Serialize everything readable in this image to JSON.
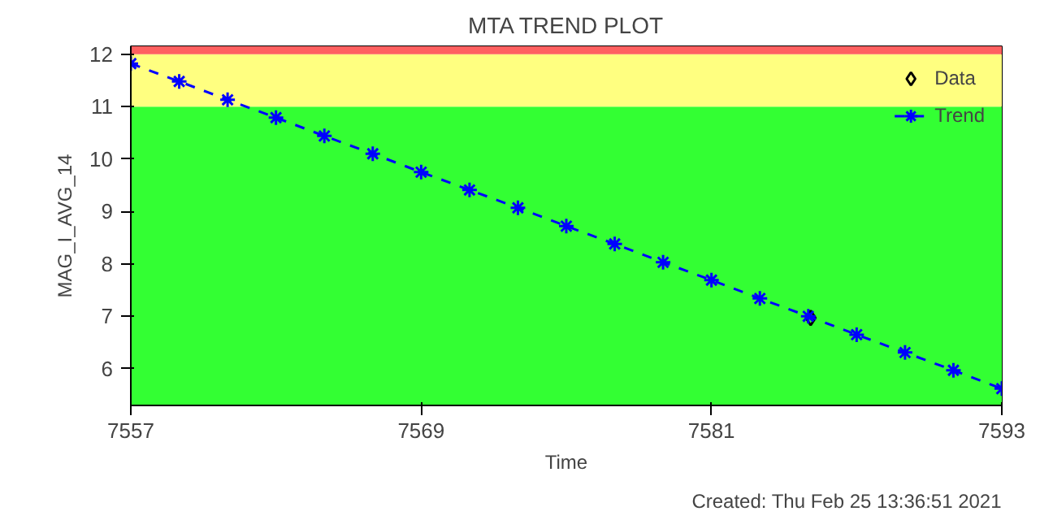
{
  "chart_data": {
    "type": "line",
    "title": "MTA TREND PLOT",
    "xlabel": "Time",
    "ylabel": "MAG_I_AVG_14",
    "xlim": [
      7557,
      7593
    ],
    "ylim": [
      5.3,
      12.15
    ],
    "xticks": [
      7557,
      7569,
      7581,
      7593
    ],
    "yticks": [
      6,
      7,
      8,
      9,
      10,
      11,
      12
    ],
    "grid": false,
    "legend": "top right",
    "bands": [
      {
        "axis": "y",
        "from": 5.3,
        "to": 11,
        "color": "#33ff33"
      },
      {
        "axis": "y",
        "from": 11,
        "to": 12,
        "color": "#ffff80"
      },
      {
        "axis": "y",
        "from": 12,
        "to": 12.15,
        "color": "#ff6060"
      }
    ],
    "annotations": [
      "Created: Thu Feb 25 13:36:51 2021"
    ],
    "series": [
      {
        "name": "Data",
        "type": "scatter",
        "marker": "diamond",
        "color": "#000000",
        "x": [
          7585.1
        ],
        "values": [
          6.97
        ]
      },
      {
        "name": "Trend",
        "marker": "cross",
        "line_style": "dashed",
        "color": "#0000ff",
        "x": [
          7557,
          7559,
          7561,
          7563,
          7565,
          7567,
          7569,
          7571,
          7573,
          7575,
          7577,
          7579,
          7581,
          7583,
          7585,
          7587,
          7589,
          7591,
          7593
        ],
        "values": [
          11.82,
          11.48,
          11.13,
          10.79,
          10.44,
          10.1,
          9.75,
          9.41,
          9.07,
          8.72,
          8.38,
          8.03,
          7.69,
          7.34,
          7.0,
          6.65,
          6.31,
          5.97,
          5.62
        ]
      }
    ]
  }
}
